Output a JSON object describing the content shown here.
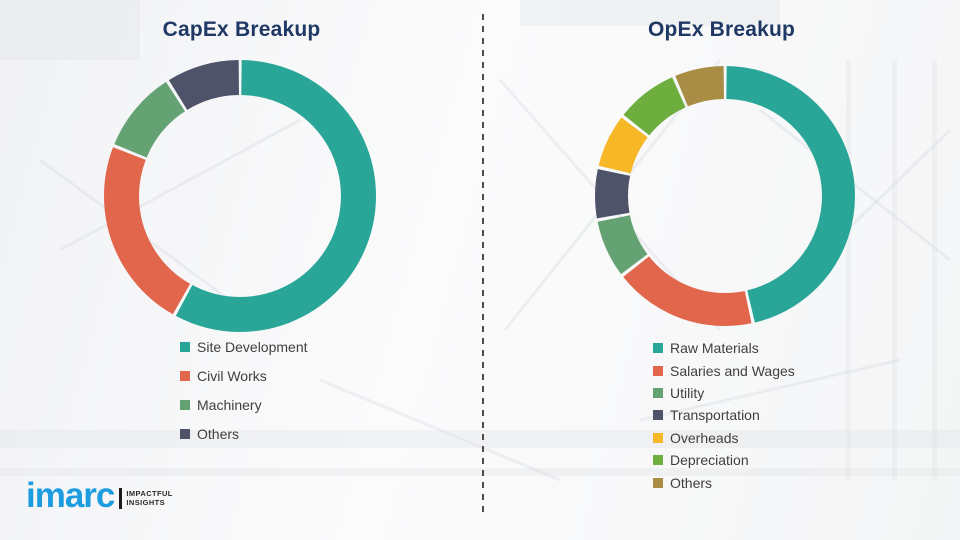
{
  "slide": {
    "left_title": "CapEx Breakup",
    "right_title": "OpEx Breakup"
  },
  "logo": {
    "brand": "imarc",
    "tagline_line1": "IMPACTFUL",
    "tagline_line2": "INSIGHTS",
    "brand_color": "#1E9CE0"
  },
  "chart_data": [
    {
      "type": "pie",
      "subtype": "donut",
      "title": "CapEx Breakup",
      "categories": [
        "Site Development",
        "Civil Works",
        "Machinery",
        "Others"
      ],
      "values": [
        58,
        23,
        10,
        9
      ],
      "colors": [
        "#29A698",
        "#E2664C",
        "#64A274",
        "#4F536A"
      ],
      "start_angle": "top",
      "direction": "clockwise",
      "data_labels": false,
      "legend_position": "below-left"
    },
    {
      "type": "pie",
      "subtype": "donut",
      "title": "OpEx Breakup",
      "categories": [
        "Raw Materials",
        "Salaries and Wages",
        "Utility",
        "Transportation",
        "Overheads",
        "Depreciation",
        "Others"
      ],
      "values": [
        46.5,
        18,
        7.5,
        6.5,
        7,
        8,
        6.5
      ],
      "colors": [
        "#29A698",
        "#E2664C",
        "#64A274",
        "#4F536A",
        "#F7B828",
        "#6DAE3F",
        "#A98D44"
      ],
      "start_angle": "top",
      "direction": "clockwise",
      "data_labels": false,
      "legend_position": "below-left"
    }
  ]
}
